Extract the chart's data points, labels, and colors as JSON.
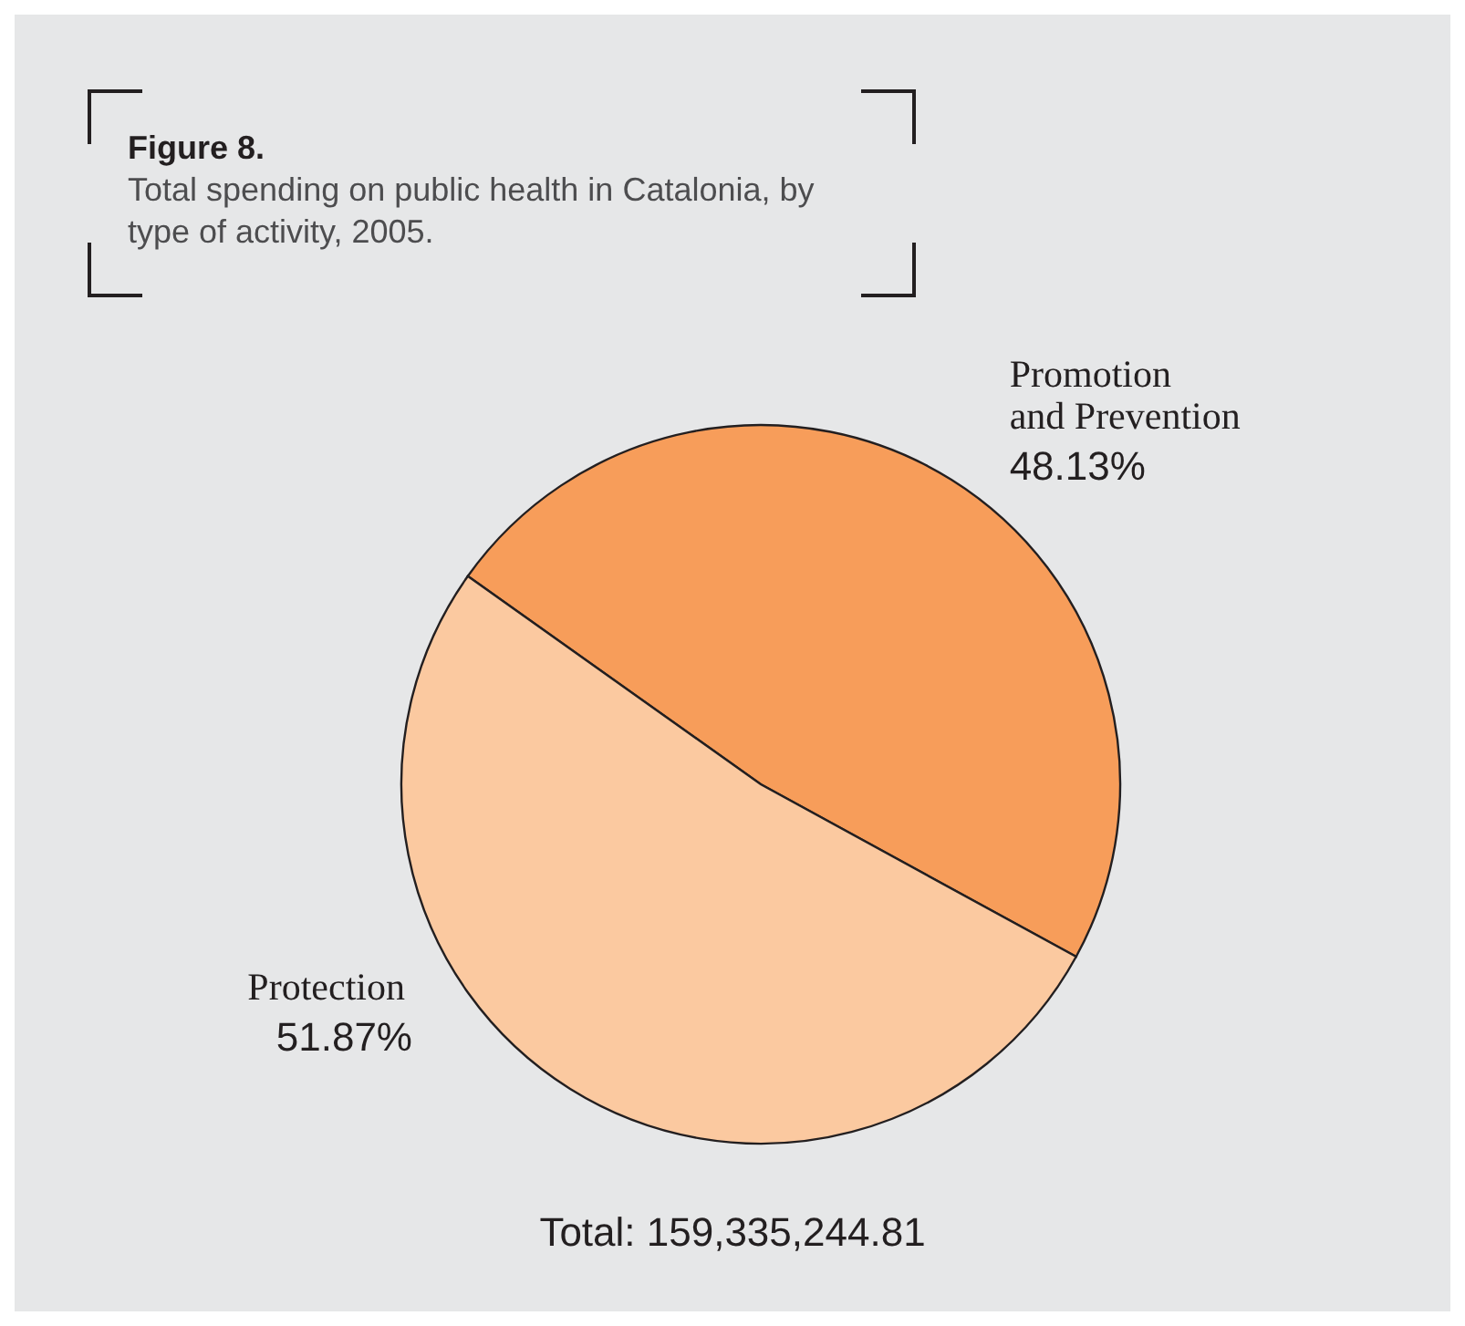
{
  "chart_data": {
    "type": "pie",
    "title": "Figure 8.",
    "subtitle": "Total spending on public health in Catalonia, by type of activity, 2005.",
    "categories": [
      "Promotion and Prevention",
      "Protection"
    ],
    "values": [
      48.13,
      51.87
    ],
    "value_labels": [
      "48.13%",
      "51.87%"
    ],
    "colors": [
      "#f79d5a",
      "#fbc9a0"
    ],
    "legend": false,
    "annotations": [
      "Total: 159,335,244.81"
    ]
  }
}
